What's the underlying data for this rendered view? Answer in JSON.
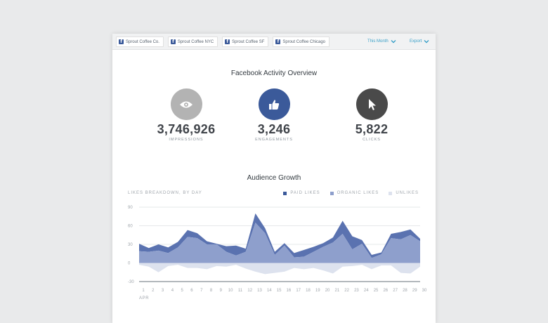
{
  "tabs": [
    {
      "icon": "f",
      "label": "Sprout Coffee Co."
    },
    {
      "icon": "f",
      "label": "Sprout Coffee NYC"
    },
    {
      "icon": "f",
      "label": "Sprout Coffee SF"
    },
    {
      "icon": "f",
      "label": "Sprout Coffee Chicago"
    }
  ],
  "controls": {
    "range_label": "This Month",
    "export_label": "Export",
    "accent": "#3aa0c8"
  },
  "overview": {
    "title": "Facebook Activity Overview",
    "stats": [
      {
        "icon": "eye-icon",
        "value": "3,746,926",
        "label": "IMPRESSIONS",
        "color": "#b3b3b3"
      },
      {
        "icon": "thumbs-up-icon",
        "value": "3,246",
        "label": "ENGAGEMENTS",
        "color": "#3b5a9a"
      },
      {
        "icon": "cursor-icon",
        "value": "5,822",
        "label": "CLICKS",
        "color": "#4a4a4a"
      }
    ]
  },
  "growth": {
    "title": "Audience Growth",
    "subtitle": "LIKES BREAKDOWN, BY DAY",
    "legend": [
      "PAID LIKES",
      "ORGANIC LIKES",
      "UNLIKES"
    ]
  },
  "chart_data": {
    "type": "area",
    "x": [
      1,
      2,
      3,
      4,
      5,
      6,
      7,
      8,
      9,
      10,
      11,
      12,
      13,
      14,
      15,
      16,
      17,
      18,
      19,
      20,
      21,
      22,
      23,
      24,
      25,
      26,
      27,
      28,
      29,
      30
    ],
    "x_month_label": "APR",
    "y_ticks": [
      90,
      60,
      30,
      0,
      -30
    ],
    "ylim": [
      -30,
      90
    ],
    "grid": true,
    "legend_position": "top-right",
    "series": [
      {
        "name": "ORGANIC LIKES",
        "color": "#8e9fcc",
        "values": [
          19,
          18,
          20,
          16,
          25,
          42,
          40,
          30,
          30,
          18,
          12,
          18,
          65,
          48,
          13,
          28,
          9,
          10,
          18,
          26,
          33,
          47,
          22,
          31,
          8,
          14,
          40,
          38,
          45,
          35
        ]
      },
      {
        "name": "PAID LIKES",
        "color": "#5a72b0",
        "values": [
          12,
          6,
          10,
          9,
          9,
          11,
          8,
          5,
          1,
          9,
          16,
          5,
          15,
          8,
          5,
          4,
          7,
          11,
          8,
          6,
          8,
          21,
          21,
          6,
          5,
          3,
          7,
          12,
          9,
          4
        ]
      },
      {
        "name": "UNLIKES",
        "color": "#dde2ee",
        "values": [
          -3,
          -6,
          -15,
          -5,
          -3,
          -8,
          -8,
          -10,
          -5,
          -6,
          -3,
          -9,
          -14,
          -18,
          -16,
          -14,
          -8,
          -10,
          -8,
          -12,
          -17,
          -6,
          -5,
          -3,
          -10,
          -4,
          -4,
          -16,
          -17,
          -6
        ]
      }
    ]
  }
}
